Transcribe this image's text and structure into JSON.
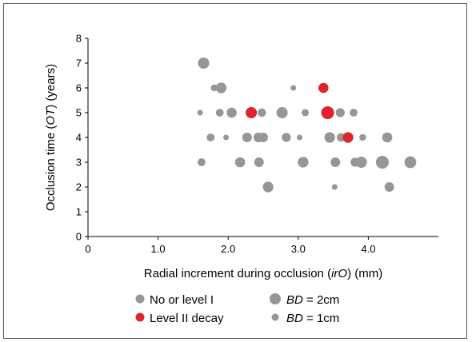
{
  "chart_data": {
    "type": "scatter",
    "xlabel_parts": [
      {
        "text": "Radial increment during occlusion (",
        "italic": false
      },
      {
        "text": "irO",
        "italic": true
      },
      {
        "text": ") (mm)",
        "italic": false
      }
    ],
    "ylabel_parts": [
      {
        "text": "Occlusion time (",
        "italic": false
      },
      {
        "text": "OT",
        "italic": true
      },
      {
        "text": ") (years)",
        "italic": false
      }
    ],
    "xlim": [
      0,
      5
    ],
    "ylim": [
      0,
      8
    ],
    "x_ticks": [
      0,
      1,
      2,
      3,
      4
    ],
    "x_tick_labels": [
      "0",
      "1.0",
      "2.0",
      "3.0",
      "4.0"
    ],
    "y_ticks": [
      0,
      1,
      2,
      3,
      4,
      5,
      6,
      7,
      8
    ],
    "y_tick_labels": [
      "0",
      "1",
      "2",
      "3",
      "4",
      "5",
      "6",
      "7",
      "8"
    ],
    "grid": false,
    "legend_position": "bottom",
    "colors": {
      "no_or_level_1": "#969696",
      "level_2_decay": "#e0242c"
    },
    "series": [
      {
        "name": "No or level I",
        "color": "#969696",
        "points": [
          {
            "x": 1.65,
            "y": 7,
            "bd": 2.0
          },
          {
            "x": 1.8,
            "y": 6,
            "bd": 1.2
          },
          {
            "x": 1.9,
            "y": 6,
            "bd": 1.9
          },
          {
            "x": 2.93,
            "y": 6,
            "bd": 1.0
          },
          {
            "x": 1.6,
            "y": 5,
            "bd": 1.0
          },
          {
            "x": 1.88,
            "y": 5,
            "bd": 1.4
          },
          {
            "x": 2.05,
            "y": 5,
            "bd": 1.8
          },
          {
            "x": 2.48,
            "y": 5,
            "bd": 1.5
          },
          {
            "x": 2.77,
            "y": 5,
            "bd": 2.0
          },
          {
            "x": 3.1,
            "y": 5,
            "bd": 1.3
          },
          {
            "x": 3.6,
            "y": 5,
            "bd": 1.6
          },
          {
            "x": 3.79,
            "y": 5,
            "bd": 1.4
          },
          {
            "x": 1.75,
            "y": 4,
            "bd": 1.4
          },
          {
            "x": 1.97,
            "y": 4,
            "bd": 1.0
          },
          {
            "x": 2.27,
            "y": 4,
            "bd": 1.7
          },
          {
            "x": 2.43,
            "y": 4,
            "bd": 1.7
          },
          {
            "x": 2.5,
            "y": 4,
            "bd": 1.7
          },
          {
            "x": 2.83,
            "y": 4,
            "bd": 1.6
          },
          {
            "x": 3.02,
            "y": 4,
            "bd": 1.0
          },
          {
            "x": 3.45,
            "y": 4,
            "bd": 1.9
          },
          {
            "x": 3.61,
            "y": 4,
            "bd": 1.5
          },
          {
            "x": 3.92,
            "y": 4,
            "bd": 1.2
          },
          {
            "x": 4.27,
            "y": 4,
            "bd": 1.8
          },
          {
            "x": 1.62,
            "y": 3,
            "bd": 1.4
          },
          {
            "x": 2.17,
            "y": 3,
            "bd": 1.8
          },
          {
            "x": 2.44,
            "y": 3,
            "bd": 1.7
          },
          {
            "x": 3.07,
            "y": 3,
            "bd": 1.9
          },
          {
            "x": 3.53,
            "y": 3,
            "bd": 1.7
          },
          {
            "x": 3.81,
            "y": 3,
            "bd": 1.6
          },
          {
            "x": 3.9,
            "y": 3,
            "bd": 2.0
          },
          {
            "x": 4.2,
            "y": 3,
            "bd": 2.3
          },
          {
            "x": 4.6,
            "y": 3,
            "bd": 2.1
          },
          {
            "x": 2.57,
            "y": 2,
            "bd": 1.9
          },
          {
            "x": 3.52,
            "y": 2,
            "bd": 1.0
          },
          {
            "x": 4.3,
            "y": 2,
            "bd": 1.7
          }
        ]
      },
      {
        "name": "Level II decay",
        "color": "#e0242c",
        "points": [
          {
            "x": 3.36,
            "y": 6,
            "bd": 1.8
          },
          {
            "x": 2.33,
            "y": 5,
            "bd": 2.0
          },
          {
            "x": 3.42,
            "y": 5,
            "bd": 2.3
          },
          {
            "x": 3.71,
            "y": 4,
            "bd": 1.9
          }
        ]
      }
    ],
    "legend": {
      "entries": [
        {
          "marker": "gray",
          "size": "medium",
          "label_parts": [
            {
              "text": "No or level I",
              "italic": false
            }
          ]
        },
        {
          "marker": "red",
          "size": "medium",
          "label_parts": [
            {
              "text": "Level II decay",
              "italic": false
            }
          ]
        },
        {
          "marker": "gray",
          "size": "large",
          "label_parts": [
            {
              "text": "BD",
              "italic": true
            },
            {
              "text": " = 2cm",
              "italic": false
            }
          ]
        },
        {
          "marker": "gray",
          "size": "small",
          "label_parts": [
            {
              "text": "BD",
              "italic": true
            },
            {
              "text": " = 1cm",
              "italic": false
            }
          ]
        }
      ]
    }
  }
}
